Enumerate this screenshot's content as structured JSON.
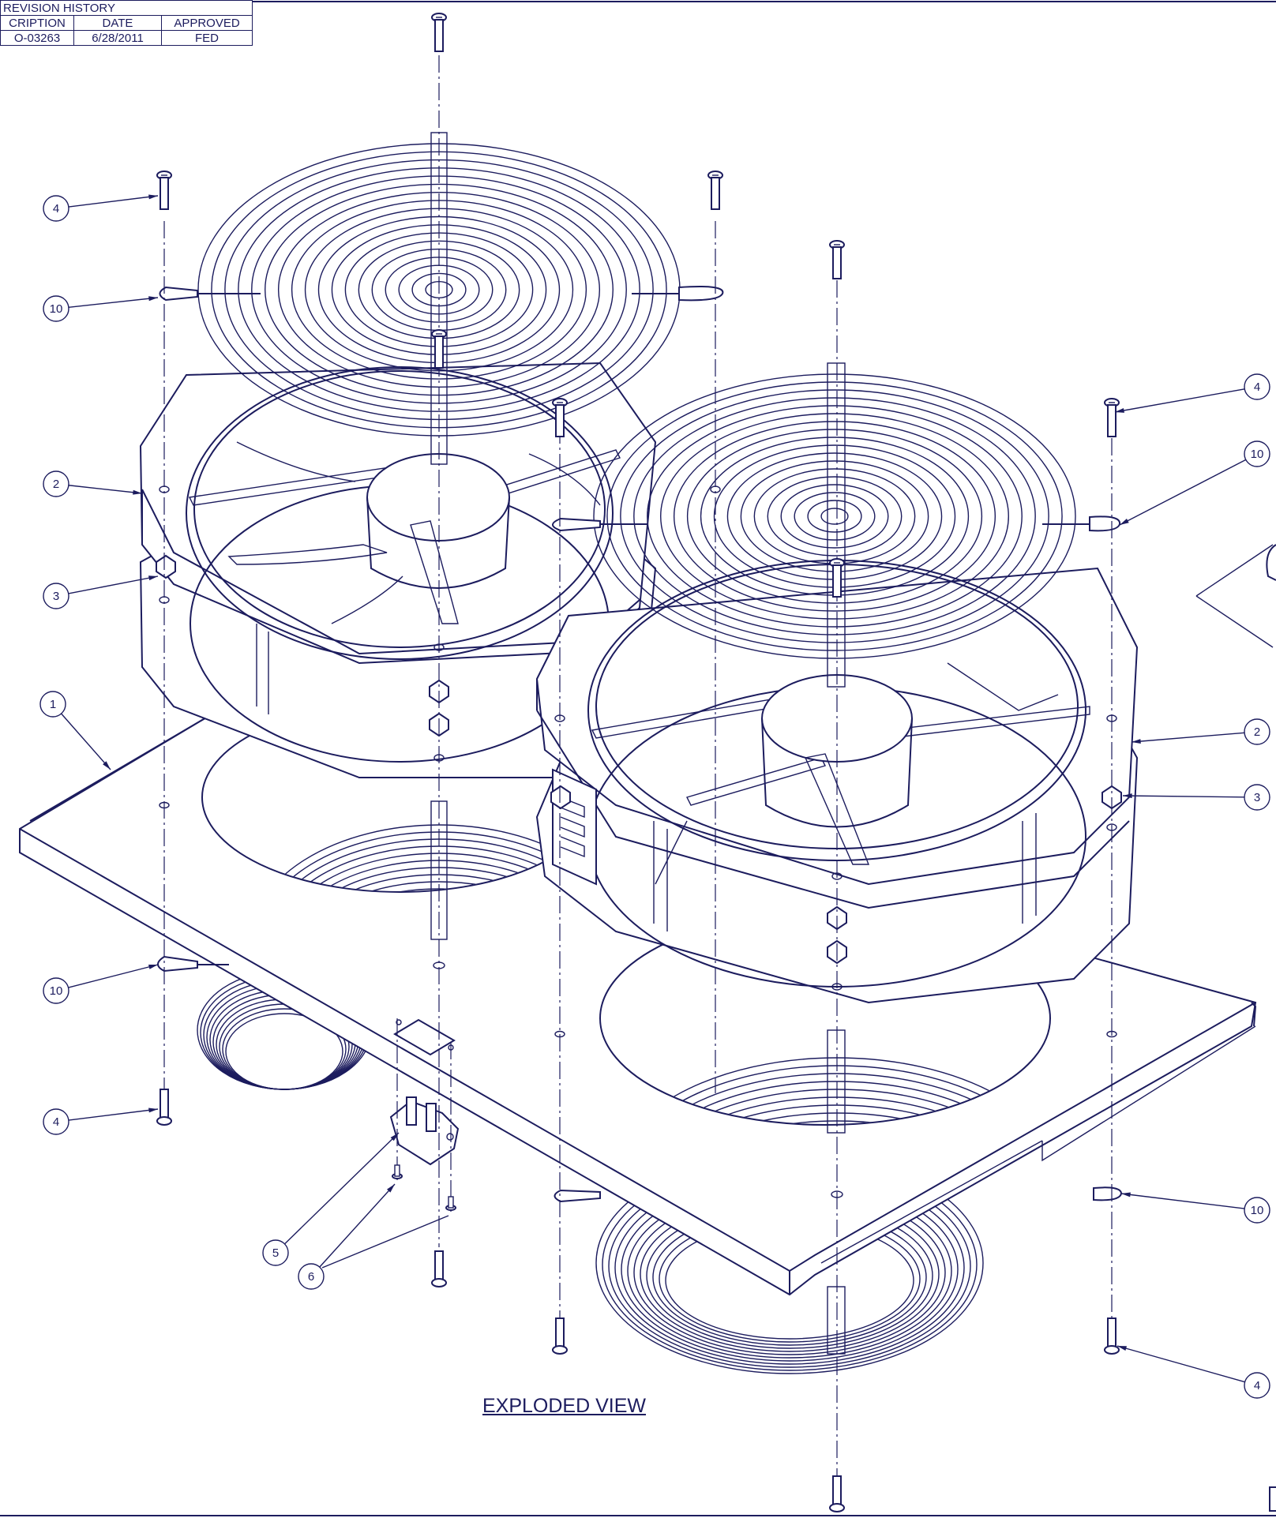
{
  "revision_table": {
    "title": "REVISION HISTORY",
    "headers": [
      "CRIPTION",
      "DATE",
      "APPROVED"
    ],
    "row": [
      "O-03263",
      "6/28/2011",
      "FED"
    ]
  },
  "view_title": "EXPLODED VIEW",
  "balloons": [
    "4",
    "10",
    "2",
    "3",
    "1",
    "10",
    "4",
    "5",
    "6",
    "4",
    "10",
    "2",
    "3",
    "10",
    "4"
  ],
  "colors": {
    "line": "#1c1c5e",
    "paper": "#ffffff"
  }
}
